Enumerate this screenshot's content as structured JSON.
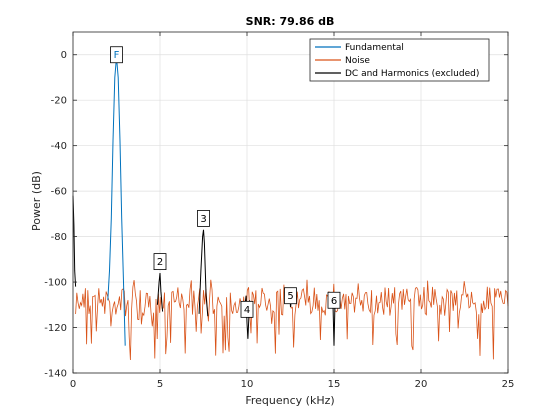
{
  "chart_data": {
    "type": "line",
    "title": "SNR:  79.86 dB",
    "xlabel": "Frequency (kHz)",
    "ylabel": "Power (dB)",
    "xlim": [
      0,
      25
    ],
    "ylim": [
      -140,
      10
    ],
    "grid": true,
    "legend_placement": "top-right",
    "x_ticks": [
      "0",
      "5",
      "10",
      "15",
      "20",
      "25"
    ],
    "y_ticks": [
      "0",
      "-20",
      "-40",
      "-60",
      "-80",
      "-100",
      "-120",
      "-140"
    ],
    "colors": {
      "fundamental": "#0072BD",
      "noise": "#D95319",
      "harmonics": "#000000",
      "grid": "#DFDFDF"
    },
    "series": [
      {
        "name": "Fundamental",
        "color": "#0072BD",
        "points": [
          [
            2.0,
            -108
          ],
          [
            2.1,
            -95
          ],
          [
            2.2,
            -72
          ],
          [
            2.3,
            -38
          ],
          [
            2.4,
            -10
          ],
          [
            2.5,
            -1
          ],
          [
            2.6,
            -10
          ],
          [
            2.7,
            -38
          ],
          [
            2.8,
            -72
          ],
          [
            2.9,
            -100
          ],
          [
            3.0,
            -128
          ]
        ]
      },
      {
        "name": "Noise",
        "color": "#D95319",
        "style": "noise floor, approximately -100 to -137 dB from 0 to 25 kHz"
      },
      {
        "name": "DC and Harmonics (excluded)",
        "color": "#000000",
        "segments": [
          [
            [
              0.0,
              -62
            ],
            [
              0.05,
              -75
            ],
            [
              0.1,
              -95
            ],
            [
              0.15,
              -102
            ]
          ],
          [
            [
              4.85,
              -110
            ],
            [
              4.95,
              -100
            ],
            [
              5.0,
              -96
            ],
            [
              5.05,
              -104
            ],
            [
              5.15,
              -113
            ]
          ],
          [
            [
              7.25,
              -114
            ],
            [
              7.35,
              -95
            ],
            [
              7.45,
              -80
            ],
            [
              7.5,
              -77
            ],
            [
              7.55,
              -83
            ],
            [
              7.65,
              -106
            ],
            [
              7.75,
              -115
            ]
          ],
          [
            [
              9.85,
              -112
            ],
            [
              9.95,
              -106
            ],
            [
              10.0,
              -118
            ],
            [
              10.05,
              -125
            ],
            [
              10.15,
              -108
            ]
          ],
          [
            [
              12.35,
              -106
            ],
            [
              12.45,
              -104
            ],
            [
              12.5,
              -111
            ],
            [
              12.55,
              -108
            ],
            [
              12.65,
              -105
            ]
          ],
          [
            [
              14.9,
              -108
            ],
            [
              14.95,
              -112
            ],
            [
              15.0,
              -128
            ],
            [
              15.05,
              -111
            ],
            [
              15.1,
              -106
            ]
          ]
        ]
      }
    ],
    "markers": [
      {
        "label": "F",
        "x": 2.5,
        "y": 0,
        "color": "#0072BD"
      },
      {
        "label": "2",
        "x": 5.0,
        "y": -91,
        "color": "#000000"
      },
      {
        "label": "3",
        "x": 7.5,
        "y": -72,
        "color": "#000000"
      },
      {
        "label": "4",
        "x": 10.0,
        "y": -112,
        "color": "#000000"
      },
      {
        "label": "5",
        "x": 12.5,
        "y": -106,
        "color": "#000000"
      },
      {
        "label": "6",
        "x": 15.0,
        "y": -108,
        "color": "#000000"
      }
    ]
  }
}
